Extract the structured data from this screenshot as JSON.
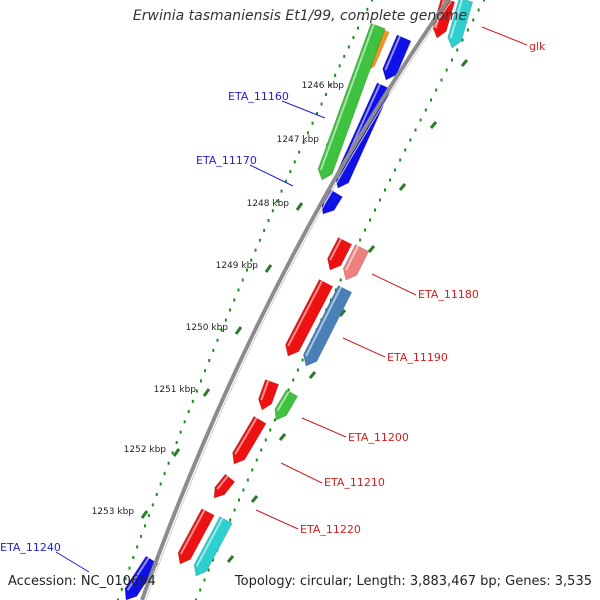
{
  "title": "Erwinia tasmaniensis Et1/99, complete genome",
  "footer": {
    "accession": "Accession: NC_010694",
    "summary": "Topology: circular; Length: 3,883,467 bp; Genes: 3,535"
  },
  "colors": {
    "backbone": "#8c8c8c",
    "tick_major": "#2a7a2a",
    "tick_minor": "#1a8f1a",
    "label_left": "#1f1fd0",
    "label_right": "#d01f1f"
  },
  "kbp_ticks": [
    {
      "label": "1246 kbp"
    },
    {
      "label": "1247 kbp"
    },
    {
      "label": "1248 kbp"
    },
    {
      "label": "1249 kbp"
    },
    {
      "label": "1250 kbp"
    },
    {
      "label": "1251 kbp"
    },
    {
      "label": "1252 kbp"
    },
    {
      "label": "1253 kbp"
    }
  ],
  "gene_labels": [
    {
      "name": "ETA_11160",
      "side": "left"
    },
    {
      "name": "ETA_11170",
      "side": "left"
    },
    {
      "name": "ETA_11240",
      "side": "left"
    },
    {
      "name": "glk",
      "side": "right"
    },
    {
      "name": "ETA_11180",
      "side": "right"
    },
    {
      "name": "ETA_11190",
      "side": "right"
    },
    {
      "name": "ETA_11200",
      "side": "right"
    },
    {
      "name": "ETA_11210",
      "side": "right"
    },
    {
      "name": "ETA_11220",
      "side": "right"
    }
  ],
  "gene_colors": {
    "green": "#3fc23f",
    "blue": "#1010e8",
    "orange": "#f0961e",
    "red": "#ee1111",
    "pink": "#ee8080",
    "steelblue": "#4a80b8",
    "cyan": "#2ecfcf"
  }
}
